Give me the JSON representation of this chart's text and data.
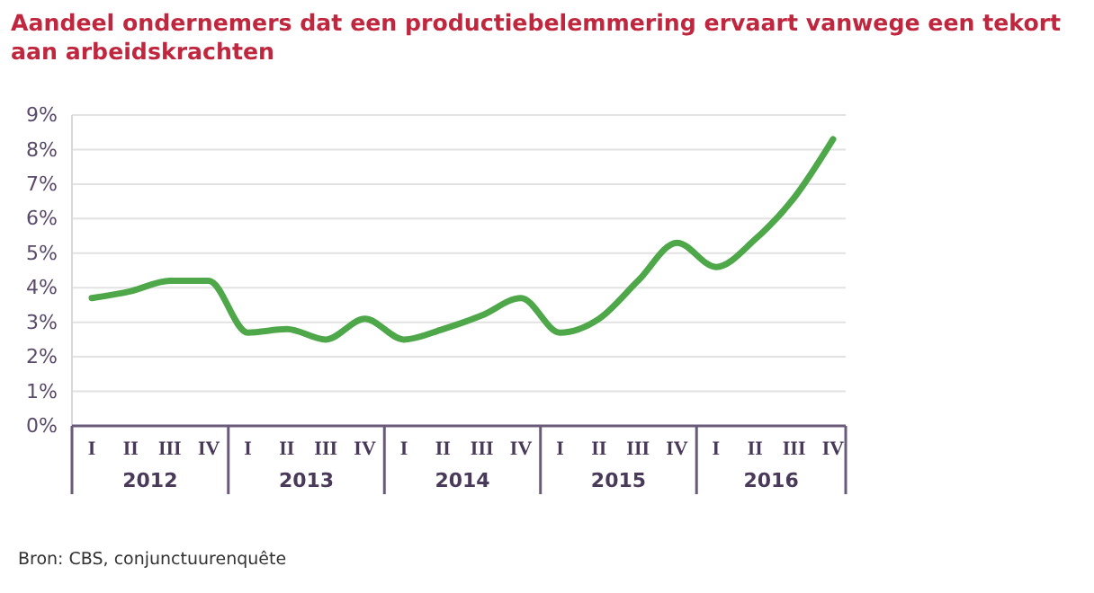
{
  "chart_data": {
    "type": "line",
    "title": "Aandeel ondernemers dat een productiebelemmering ervaart vanwege een tekort aan arbeidskrachten",
    "categories": [
      "I",
      "II",
      "III",
      "IV",
      "I",
      "II",
      "III",
      "IV",
      "I",
      "II",
      "III",
      "IV",
      "I",
      "II",
      "III",
      "IV",
      "I",
      "II",
      "III",
      "IV"
    ],
    "series": [
      {
        "color": "#4ea84a",
        "values": [
          3.7,
          3.9,
          4.2,
          4.2,
          2.7,
          2.8,
          2.5,
          3.1,
          2.5,
          2.8,
          3.2,
          3.7,
          2.7,
          3.1,
          4.2,
          5.3,
          4.6,
          5.4,
          6.6,
          8.3
        ]
      }
    ],
    "ylim": [
      0,
      9
    ],
    "yticks": [
      {
        "value": 0,
        "label": "0%"
      },
      {
        "value": 1,
        "label": "1%"
      },
      {
        "value": 2,
        "label": "2%"
      },
      {
        "value": 3,
        "label": "3%"
      },
      {
        "value": 4,
        "label": "4%"
      },
      {
        "value": 5,
        "label": "5%"
      },
      {
        "value": 6,
        "label": "6%"
      },
      {
        "value": 7,
        "label": "7%"
      },
      {
        "value": 8,
        "label": "8%"
      },
      {
        "value": 9,
        "label": "9%"
      }
    ],
    "grid": "y",
    "marker": "none",
    "line_style": "solid",
    "annotations": [
      "2012",
      "2013",
      "2014",
      "2015",
      "2016",
      "Bron: CBS, conjunctuurenquête"
    ]
  }
}
